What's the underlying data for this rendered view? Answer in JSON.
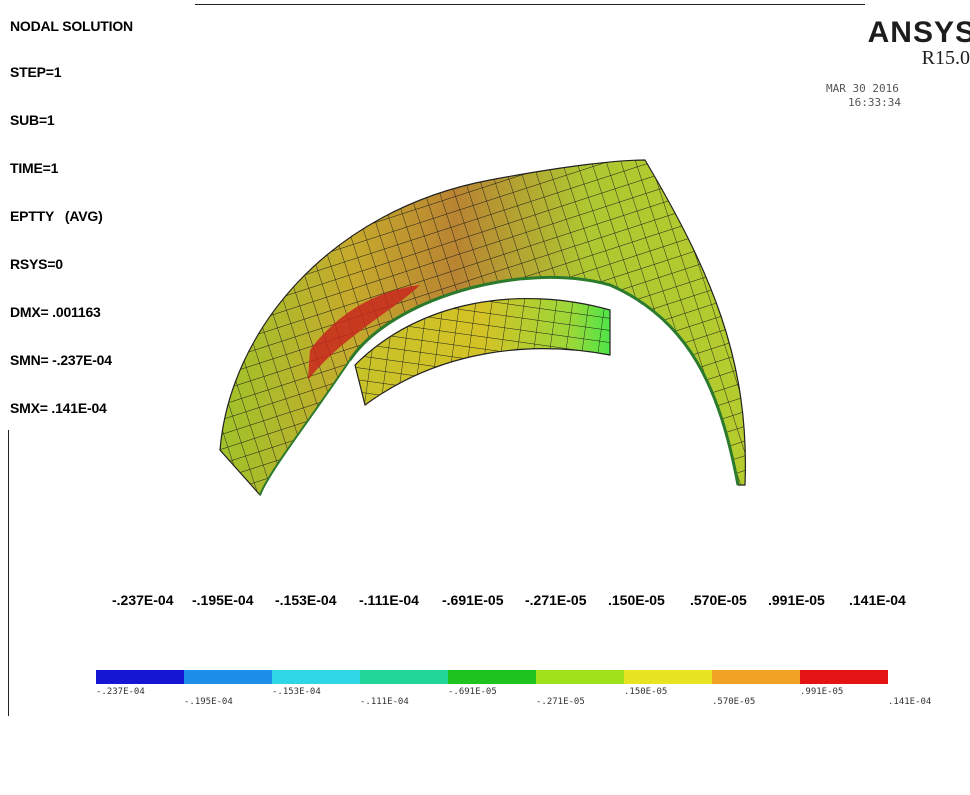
{
  "info_lines": [
    "NODAL SOLUTION",
    "STEP=1",
    "SUB=1",
    "TIME=1",
    "EPTTY   (AVG)",
    "RSYS=0",
    "DMX= .001163",
    "SMN= -.237E-04",
    "SMX= .141E-04"
  ],
  "brand": {
    "name": "ANSYS",
    "version": "R15.0"
  },
  "date": {
    "date": "MAR 30 2016",
    "time": "16:33:34"
  },
  "legend_labels": [
    "-.237E-04",
    "-.195E-04",
    "-.153E-04",
    "-.111E-04",
    "-.691E-05",
    "-.271E-05",
    ".150E-05",
    ".570E-05",
    ".991E-05",
    ".141E-04"
  ],
  "colorbar_colors": [
    "#1515d4",
    "#1e8fe8",
    "#2fd7e6",
    "#22d69a",
    "#1fc31f",
    "#9fe21c",
    "#e9e421",
    "#f1a326",
    "#e51414"
  ],
  "scale_labels": [
    "-.237E-04",
    "-.195E-04",
    "-.153E-04",
    "-.111E-04",
    "-.691E-05",
    "-.271E-05",
    ".150E-05",
    ".570E-05",
    ".991E-05",
    ".141E-04"
  ]
}
